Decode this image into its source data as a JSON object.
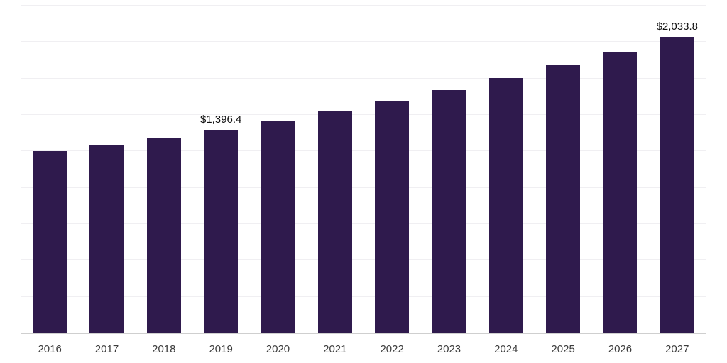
{
  "chart_data": {
    "type": "bar",
    "title": "",
    "xlabel": "",
    "ylabel": "",
    "categories": [
      "2016",
      "2017",
      "2018",
      "2019",
      "2020",
      "2021",
      "2022",
      "2023",
      "2024",
      "2025",
      "2026",
      "2027"
    ],
    "values": [
      1250,
      1297,
      1345,
      1396.4,
      1460,
      1525,
      1595,
      1670,
      1755,
      1845,
      1935,
      2033.8
    ],
    "data_labels": [
      "",
      "",
      "",
      "$1,396.4",
      "",
      "",
      "",
      "",
      "",
      "",
      "",
      "$2,033.8"
    ],
    "ylim": [
      0,
      2250
    ],
    "grid_step": 250,
    "grid": true,
    "legend": false,
    "bar_color": "#2f1a4d",
    "axis_line_color": "#cfcfcf",
    "gridline_color": "#f0eff2"
  }
}
